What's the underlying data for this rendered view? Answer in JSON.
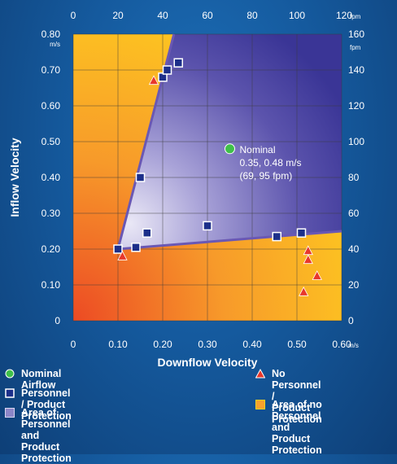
{
  "chart_data": {
    "type": "scatter",
    "xlabel": "Downflow Velocity",
    "ylabel": "Inflow Velocity",
    "x_unit": "m/s",
    "y_unit": "m/s",
    "x_ticks": [
      "0",
      "0.10",
      "0.20",
      "0.30",
      "0.40",
      "0.50",
      "0.60"
    ],
    "y_ticks": [
      "0",
      "0.10",
      "0.20",
      "0.30",
      "0.40",
      "0.50",
      "0.60",
      "0.70",
      "0.80"
    ],
    "x_ticks_top": [
      "0",
      "20",
      "40",
      "60",
      "80",
      "100",
      "120"
    ],
    "x_top_unit": "fpm",
    "y_ticks_right": [
      "0",
      "20",
      "40",
      "60",
      "80",
      "100",
      "120",
      "140",
      "160"
    ],
    "y_right_unit": "fpm",
    "xlim": [
      0,
      0.6
    ],
    "ylim": [
      0,
      0.8
    ],
    "grid": true,
    "region_protection": [
      [
        0.1,
        0.2
      ],
      [
        0.225,
        0.8
      ],
      [
        0.6,
        0.8
      ],
      [
        0.6,
        0.25
      ]
    ],
    "series": [
      {
        "name": "Personnel / Product Protection",
        "marker": "square",
        "points": [
          [
            0.1,
            0.2
          ],
          [
            0.14,
            0.205
          ],
          [
            0.165,
            0.245
          ],
          [
            0.15,
            0.4
          ],
          [
            0.2,
            0.68
          ],
          [
            0.21,
            0.7
          ],
          [
            0.235,
            0.72
          ],
          [
            0.3,
            0.265
          ],
          [
            0.455,
            0.235
          ],
          [
            0.51,
            0.245
          ]
        ]
      },
      {
        "name": "No Personnel / Product Protection",
        "marker": "triangle",
        "points": [
          [
            0.11,
            0.18
          ],
          [
            0.18,
            0.67
          ],
          [
            0.515,
            0.08
          ],
          [
            0.525,
            0.195
          ],
          [
            0.525,
            0.17
          ],
          [
            0.545,
            0.125
          ]
        ]
      },
      {
        "name": "Nominal Airflow",
        "marker": "circle",
        "points": [
          [
            0.35,
            0.48
          ]
        ]
      }
    ],
    "annotation": {
      "lines": [
        "Nominal",
        "0.35, 0.48 m/s",
        "(69, 95 fpm)"
      ]
    }
  },
  "legend": {
    "items": [
      {
        "label": "Nominal Airflow",
        "marker": "circle"
      },
      {
        "label": "Personnel / Product Protection",
        "marker": "square"
      },
      {
        "label": "Area of Personnel and\nProduct Protection",
        "marker": "area-protection"
      },
      {
        "label": "No Personnel /\nProduct Protection",
        "marker": "triangle"
      },
      {
        "label": "Area of no Personnel\nand Product Protection",
        "marker": "area-no-protection"
      }
    ]
  },
  "colors": {
    "circle": "#3fc04a",
    "square_fill": "#1c2f8a",
    "triangle": "#e8382c",
    "boundary": "#6a58b4",
    "region_dark": "#3a3596",
    "region_light": "#eae8f6",
    "warm_yellow": "#ffd21e",
    "warm_orange": "#f79a2a",
    "warm_red": "#ec4a24"
  }
}
